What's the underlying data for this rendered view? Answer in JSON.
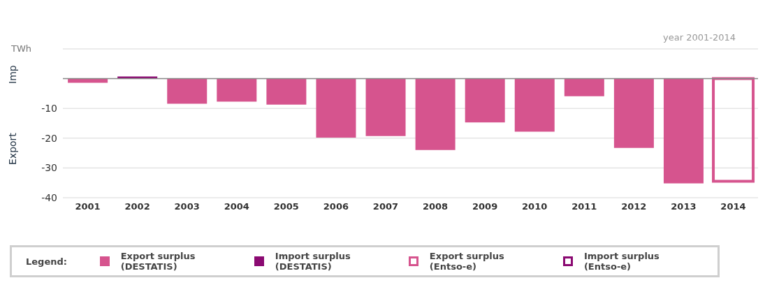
{
  "chart_data": {
    "type": "bar",
    "ylabel": "Export",
    "legend_title": "Legend:",
    "annotations": [
      "Imp",
      "TWh",
      "year 2001-2014"
    ],
    "categories": [
      "2001",
      "2002",
      "2003",
      "2004",
      "2005",
      "2006",
      "2007",
      "2008",
      "2009",
      "2010",
      "2011",
      "2012",
      "2013",
      "2014"
    ],
    "series": [
      {
        "name": "Export surplus (DESTATIS)",
        "color": "#d6548e",
        "values": [
          -1.4,
          null,
          -8.4,
          -7.7,
          -8.7,
          -19.8,
          -19.3,
          -24.0,
          -14.7,
          -17.8,
          -5.9,
          -23.3,
          -35.2,
          null
        ]
      },
      {
        "name": "Import surplus (DESTATIS)",
        "color": "#8b0a72",
        "values": [
          null,
          0.7,
          null,
          null,
          null,
          null,
          null,
          null,
          null,
          null,
          null,
          null,
          null,
          null
        ]
      },
      {
        "name": "Export surplus (Entso-e)",
        "color": "#d6548e",
        "values": [
          null,
          null,
          null,
          null,
          null,
          null,
          null,
          null,
          null,
          null,
          null,
          null,
          null,
          -34.5
        ]
      },
      {
        "name": "Import surplus (Entso-e)",
        "color": "#8b0a72",
        "values": [
          null,
          null,
          null,
          null,
          null,
          null,
          null,
          null,
          null,
          null,
          null,
          null,
          null,
          null
        ]
      }
    ],
    "stacked": true,
    "ylim": [
      -40,
      10
    ],
    "yticks": [
      {
        "value": 10,
        "label": null
      },
      {
        "value": 0,
        "label": null
      },
      -10,
      -20,
      -30,
      -40
    ],
    "ref_lines": [
      {
        "axis": "y",
        "value": 0,
        "color": "#888888"
      }
    ],
    "grid": "y",
    "legend": "bottom"
  }
}
